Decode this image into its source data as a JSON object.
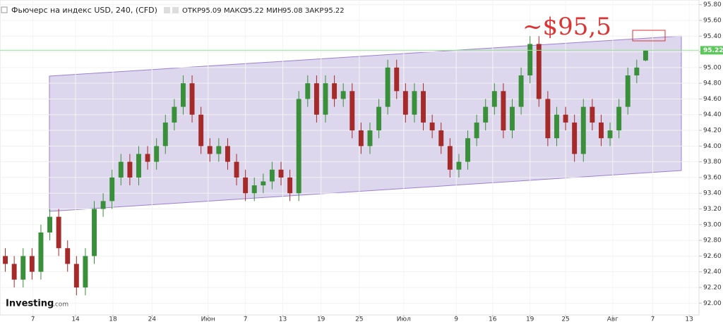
{
  "chart_data": {
    "type": "candlestick",
    "title": "Фьючерс на индекс USD, 240, (CFD)",
    "ohlc_labels": {
      "open": "ОТКР",
      "high": "МАКС",
      "low": "МИН",
      "close": "ЗАКР"
    },
    "annotation": "~$95,5",
    "logo": [
      "Investing",
      ".com"
    ],
    "up_color": "#3a8f3a",
    "down_color": "#a52a2a",
    "open": [
      92.6,
      92.5,
      92.3,
      92.6,
      92.4,
      92.9,
      93.1,
      92.7,
      92.5,
      92.2,
      92.6,
      93.2,
      93.3,
      93.6,
      93.8,
      93.6,
      93.9,
      93.8,
      94.0,
      94.3,
      94.5,
      94.8,
      94.4,
      94.0,
      93.9,
      94.0,
      93.8,
      93.6,
      93.4,
      93.5,
      93.55,
      93.7,
      93.6,
      93.4,
      94.6,
      94.8,
      94.4,
      94.8,
      94.6,
      94.7,
      94.2,
      94.0,
      94.2,
      94.5,
      95.0,
      94.7,
      94.4,
      94.7,
      94.3,
      94.2,
      94.0,
      93.7,
      93.8,
      94.1,
      94.3,
      94.5,
      94.7,
      94.2,
      94.5,
      94.9,
      95.3,
      94.6,
      94.1,
      94.4,
      94.3,
      93.9,
      94.5,
      94.3,
      94.1,
      94.2,
      94.5,
      94.9,
      95.09
    ],
    "high": [
      92.7,
      92.6,
      92.7,
      92.7,
      93.0,
      93.2,
      93.2,
      92.8,
      92.6,
      92.7,
      93.3,
      93.4,
      93.7,
      93.9,
      93.9,
      94.0,
      94.0,
      94.1,
      94.4,
      94.6,
      94.9,
      94.9,
      94.5,
      94.1,
      94.1,
      94.1,
      93.9,
      93.7,
      93.6,
      93.65,
      93.8,
      93.8,
      93.7,
      94.7,
      94.9,
      94.9,
      94.9,
      94.9,
      94.8,
      94.8,
      94.3,
      94.3,
      94.6,
      95.1,
      95.1,
      94.8,
      94.8,
      94.8,
      94.4,
      94.3,
      94.1,
      93.9,
      94.2,
      94.4,
      94.6,
      94.8,
      94.8,
      94.6,
      95.0,
      95.4,
      95.4,
      94.7,
      94.5,
      94.5,
      94.4,
      94.6,
      94.6,
      94.4,
      94.3,
      94.6,
      95.0,
      95.1,
      95.22
    ],
    "low": [
      92.4,
      92.2,
      92.2,
      92.3,
      92.3,
      92.8,
      92.6,
      92.4,
      92.1,
      92.1,
      92.5,
      93.1,
      93.2,
      93.5,
      93.5,
      93.5,
      93.7,
      93.7,
      93.9,
      94.2,
      94.4,
      94.3,
      93.9,
      93.8,
      93.8,
      93.7,
      93.5,
      93.3,
      93.3,
      93.4,
      93.45,
      93.5,
      93.3,
      93.3,
      94.5,
      94.3,
      94.3,
      94.5,
      94.5,
      94.1,
      93.9,
      93.9,
      94.1,
      94.4,
      94.6,
      94.3,
      94.3,
      94.2,
      94.1,
      93.9,
      93.6,
      93.6,
      93.7,
      94.0,
      94.2,
      94.4,
      94.1,
      94.1,
      94.4,
      94.8,
      94.5,
      94.0,
      94.0,
      94.2,
      93.8,
      93.8,
      94.2,
      94.0,
      94.0,
      94.1,
      94.4,
      94.8,
      95.08
    ],
    "close": [
      92.5,
      92.3,
      92.6,
      92.4,
      92.9,
      93.1,
      92.7,
      92.5,
      92.2,
      92.6,
      93.2,
      93.3,
      93.6,
      93.8,
      93.6,
      93.9,
      93.8,
      94.0,
      94.3,
      94.5,
      94.8,
      94.4,
      94.0,
      93.9,
      94.0,
      93.8,
      93.6,
      93.4,
      93.5,
      93.55,
      93.7,
      93.6,
      93.4,
      94.6,
      94.8,
      94.4,
      94.8,
      94.6,
      94.7,
      94.2,
      94.0,
      94.2,
      94.5,
      95.0,
      94.7,
      94.4,
      94.7,
      94.3,
      94.2,
      94.0,
      93.7,
      93.8,
      94.1,
      94.3,
      94.5,
      94.7,
      94.2,
      94.5,
      94.9,
      95.3,
      94.6,
      94.1,
      94.4,
      94.3,
      93.9,
      94.5,
      94.3,
      94.1,
      94.2,
      94.5,
      94.9,
      95.0,
      95.22
    ],
    "xlim": [
      -0.6,
      78
    ],
    "xticks": [
      {
        "value": 3.1,
        "label": "7"
      },
      {
        "value": 7.9,
        "label": "14"
      },
      {
        "value": 12.1,
        "label": "18"
      },
      {
        "value": 16.5,
        "label": "24"
      },
      {
        "value": 22.8,
        "label": "Июн"
      },
      {
        "value": 27,
        "label": "7"
      },
      {
        "value": 31.2,
        "label": "13"
      },
      {
        "value": 35.5,
        "label": "19"
      },
      {
        "value": 39.8,
        "label": "25"
      },
      {
        "value": 44.8,
        "label": "Июл"
      },
      {
        "value": 50.7,
        "label": "9"
      },
      {
        "value": 54.8,
        "label": "16"
      },
      {
        "value": 59,
        "label": "19"
      },
      {
        "value": 63,
        "label": "25"
      },
      {
        "value": 68.3,
        "label": "Авг"
      },
      {
        "value": 72.8,
        "label": "7"
      },
      {
        "value": 76.9,
        "label": "13"
      }
    ],
    "ylim": [
      91.85,
      95.86
    ],
    "yticks": [
      {
        "value": 92,
        "label": "92.00"
      },
      {
        "value": 92.2,
        "label": "92.20"
      },
      {
        "value": 92.4,
        "label": "92.40"
      },
      {
        "value": 92.6,
        "label": "92.60"
      },
      {
        "value": 92.8,
        "label": "92.80"
      },
      {
        "value": 93,
        "label": "93.00"
      },
      {
        "value": 93.2,
        "label": "93.20"
      },
      {
        "value": 93.4,
        "label": "93.40"
      },
      {
        "value": 93.6,
        "label": "93.60"
      },
      {
        "value": 93.8,
        "label": "93.80"
      },
      {
        "value": 94,
        "label": "94.00"
      },
      {
        "value": 94.2,
        "label": "94.20"
      },
      {
        "value": 94.4,
        "label": "94.40"
      },
      {
        "value": 94.6,
        "label": "94.60"
      },
      {
        "value": 94.8,
        "label": "94.80"
      },
      {
        "value": 95,
        "label": "95.00"
      },
      {
        "value": 95.2,
        "label": "95.20"
      },
      {
        "value": 95.4,
        "label": "95.40"
      },
      {
        "value": 95.6,
        "label": "95.60"
      },
      {
        "value": 95.8,
        "label": "95.80"
      }
    ],
    "grid": true
  }
}
